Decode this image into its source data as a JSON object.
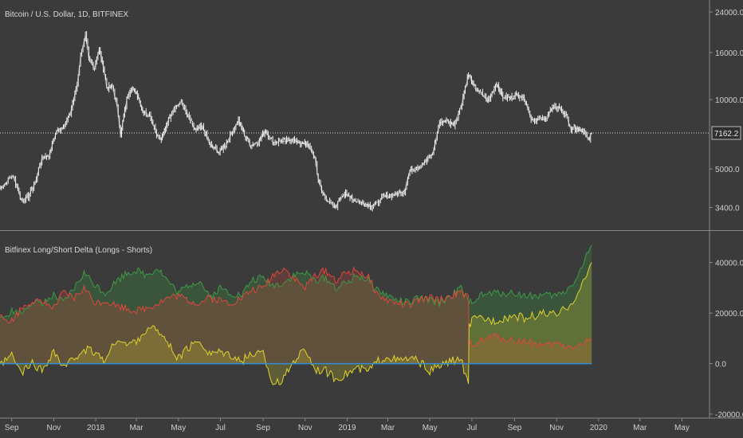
{
  "colors": {
    "background": "#3b3b3b",
    "text": "#cfcfcf",
    "price": "#f2f2f2",
    "longs": "#3d9a45",
    "shorts": "#e0463a",
    "delta": "#e0d12c",
    "zero_line": "#2f8fd8",
    "separator": "#8a8a8a"
  },
  "chart_data": [
    {
      "type": "line",
      "title": "Bitcoin / U.S. Dollar, 1D, BITFINEX",
      "y_scale": "log",
      "yticks": [
        "24000.0",
        "16000.0",
        "10000.0",
        "7162.2",
        "5000.0",
        "3400.0"
      ],
      "ytick_values": [
        24000,
        16000,
        10000,
        7162.2,
        5000,
        3400
      ],
      "ylim": [
        2800,
        26000
      ],
      "last_price_label": "7162.2",
      "last_price": 7162.2,
      "x": [
        "2017-08-15",
        "2017-08-25",
        "2017-09-01",
        "2017-09-05",
        "2017-09-15",
        "2017-09-25",
        "2017-10-05",
        "2017-10-15",
        "2017-10-25",
        "2017-11-05",
        "2017-11-15",
        "2017-11-25",
        "2017-12-05",
        "2017-12-10",
        "2017-12-17",
        "2017-12-22",
        "2017-12-30",
        "2018-01-06",
        "2018-01-12",
        "2018-01-17",
        "2018-01-25",
        "2018-02-01",
        "2018-02-06",
        "2018-02-15",
        "2018-02-20",
        "2018-03-01",
        "2018-03-10",
        "2018-03-20",
        "2018-04-01",
        "2018-04-06",
        "2018-04-15",
        "2018-04-25",
        "2018-05-05",
        "2018-05-15",
        "2018-05-25",
        "2018-06-05",
        "2018-06-15",
        "2018-06-29",
        "2018-07-10",
        "2018-07-20",
        "2018-07-27",
        "2018-08-05",
        "2018-08-14",
        "2018-08-25",
        "2018-09-05",
        "2018-09-15",
        "2018-09-25",
        "2018-10-05",
        "2018-10-15",
        "2018-10-25",
        "2018-11-05",
        "2018-11-15",
        "2018-11-20",
        "2018-11-25",
        "2018-12-05",
        "2018-12-15",
        "2018-12-25",
        "2019-01-05",
        "2019-01-15",
        "2019-01-25",
        "2019-02-05",
        "2019-02-15",
        "2019-02-25",
        "2019-03-05",
        "2019-03-15",
        "2019-03-25",
        "2019-04-02",
        "2019-04-15",
        "2019-04-25",
        "2019-05-05",
        "2019-05-15",
        "2019-05-25",
        "2019-06-05",
        "2019-06-15",
        "2019-06-26",
        "2019-07-05",
        "2019-07-15",
        "2019-07-25",
        "2019-08-06",
        "2019-08-15",
        "2019-08-25",
        "2019-09-05",
        "2019-09-15",
        "2019-09-25",
        "2019-10-05",
        "2019-10-15",
        "2019-10-26",
        "2019-11-05",
        "2019-11-15",
        "2019-11-22",
        "2019-12-01",
        "2019-12-10",
        "2019-12-17",
        "2019-12-22"
      ],
      "close": [
        4100,
        4400,
        4700,
        4500,
        3650,
        3800,
        4350,
        5600,
        5700,
        7300,
        7600,
        8700,
        11700,
        15500,
        19000,
        14800,
        13800,
        16500,
        13800,
        11200,
        11400,
        9300,
        7000,
        10000,
        11200,
        10800,
        8900,
        8600,
        6900,
        6700,
        8000,
        9300,
        9700,
        8400,
        7400,
        7600,
        6400,
        5900,
        6500,
        7400,
        8100,
        7000,
        6300,
        6600,
        7300,
        6500,
        6600,
        6600,
        6700,
        6450,
        6400,
        5600,
        4500,
        4000,
        3600,
        3400,
        3900,
        3800,
        3600,
        3550,
        3450,
        3600,
        3800,
        3850,
        3900,
        4000,
        4950,
        5100,
        5400,
        5800,
        7900,
        8100,
        7800,
        9300,
        12800,
        11200,
        10600,
        9800,
        11800,
        10200,
        10200,
        10500,
        10200,
        8200,
        8200,
        8200,
        9200,
        9300,
        8500,
        7400,
        7500,
        7200,
        6700,
        7162.2
      ]
    },
    {
      "type": "area",
      "title": "Bitfinex Long/Short Delta (Longs - Shorts)",
      "yticks": [
        "40000.0",
        "20000.0",
        "0.0",
        "-20000.0"
      ],
      "ytick_values": [
        40000,
        20000,
        0,
        -20000
      ],
      "ylim": [
        -20000,
        50000
      ],
      "x": [
        "2017-08-15",
        "2017-09-01",
        "2017-09-15",
        "2017-10-01",
        "2017-10-15",
        "2017-11-01",
        "2017-11-15",
        "2017-12-01",
        "2017-12-15",
        "2018-01-01",
        "2018-01-15",
        "2018-02-01",
        "2018-02-15",
        "2018-03-01",
        "2018-03-15",
        "2018-04-01",
        "2018-04-15",
        "2018-05-01",
        "2018-05-15",
        "2018-06-01",
        "2018-06-15",
        "2018-07-01",
        "2018-07-15",
        "2018-08-01",
        "2018-08-15",
        "2018-09-01",
        "2018-09-15",
        "2018-10-01",
        "2018-10-15",
        "2018-11-01",
        "2018-11-15",
        "2018-12-01",
        "2018-12-15",
        "2019-01-01",
        "2019-01-15",
        "2019-02-01",
        "2019-02-15",
        "2019-03-01",
        "2019-03-15",
        "2019-04-01",
        "2019-04-15",
        "2019-05-01",
        "2019-05-15",
        "2019-06-01",
        "2019-06-15",
        "2019-06-26",
        "2019-06-27",
        "2019-07-01",
        "2019-07-15",
        "2019-08-01",
        "2019-08-15",
        "2019-09-01",
        "2019-09-15",
        "2019-10-01",
        "2019-10-15",
        "2019-11-01",
        "2019-11-15",
        "2019-12-01",
        "2019-12-10",
        "2019-12-22"
      ],
      "series": [
        {
          "values": [
            17000,
            21000,
            20000,
            25000,
            23000,
            27000,
            24000,
            30000,
            36000,
            31000,
            28000,
            33000,
            36000,
            37000,
            35000,
            38000,
            33000,
            28000,
            31000,
            33000,
            26000,
            30000,
            28000,
            27000,
            33000,
            34000,
            31000,
            32000,
            35000,
            36000,
            33000,
            34000,
            30000,
            32000,
            35000,
            33000,
            29000,
            27000,
            25000,
            24000,
            26000,
            25000,
            24000,
            27000,
            30000,
            24000,
            24000,
            25000,
            27000,
            28000,
            28000,
            28000,
            27000,
            27000,
            27000,
            27000,
            29000,
            34000,
            40000,
            47000
          ]
        },
        {
          "values": [
            18000,
            17000,
            22000,
            25000,
            24000,
            22000,
            28000,
            26000,
            30000,
            24000,
            25000,
            23000,
            22000,
            21000,
            22000,
            24000,
            26000,
            27000,
            25000,
            24000,
            26000,
            25000,
            24000,
            26000,
            29000,
            30000,
            35000,
            38000,
            34000,
            30000,
            35000,
            37000,
            33000,
            36000,
            37000,
            34000,
            27000,
            25000,
            24000,
            23000,
            25000,
            26000,
            25000,
            27000,
            28000,
            26000,
            8000,
            8000,
            9000,
            11000,
            10000,
            9000,
            9000,
            8000,
            7000,
            8000,
            7000,
            7000,
            8000,
            10000
          ]
        },
        {
          "values": [
            -1000,
            3000,
            -4000,
            0,
            -3000,
            5000,
            -2000,
            2000,
            6000,
            4000,
            1000,
            10000,
            7000,
            9000,
            13000,
            14000,
            8000,
            2000,
            6000,
            9000,
            4000,
            5000,
            4000,
            1000,
            4000,
            4000,
            -8000,
            -6000,
            1000,
            6000,
            -2000,
            -3000,
            -6000,
            -4000,
            -2000,
            -3000,
            1000,
            3000,
            1000,
            2000,
            1000,
            -3000,
            -1000,
            1000,
            2000,
            -9000,
            15000,
            17000,
            18000,
            17000,
            18000,
            19000,
            18000,
            19000,
            20000,
            19000,
            22000,
            27000,
            32000,
            40000
          ]
        }
      ],
      "zero_line_value": 0
    }
  ],
  "xaxis": {
    "labels": [
      "Sep",
      "Nov",
      "2018",
      "Mar",
      "May",
      "Jul",
      "Sep",
      "Nov",
      "2019",
      "Mar",
      "May",
      "Jul",
      "Sep",
      "Nov",
      "2020",
      "Mar",
      "May"
    ],
    "dates": [
      "2017-09-01",
      "2017-11-01",
      "2018-01-01",
      "2018-03-01",
      "2018-05-01",
      "2018-07-01",
      "2018-09-01",
      "2018-11-01",
      "2019-01-01",
      "2019-03-01",
      "2019-05-01",
      "2019-07-01",
      "2019-09-01",
      "2019-11-01",
      "2020-01-01",
      "2020-03-01",
      "2020-05-01"
    ]
  }
}
